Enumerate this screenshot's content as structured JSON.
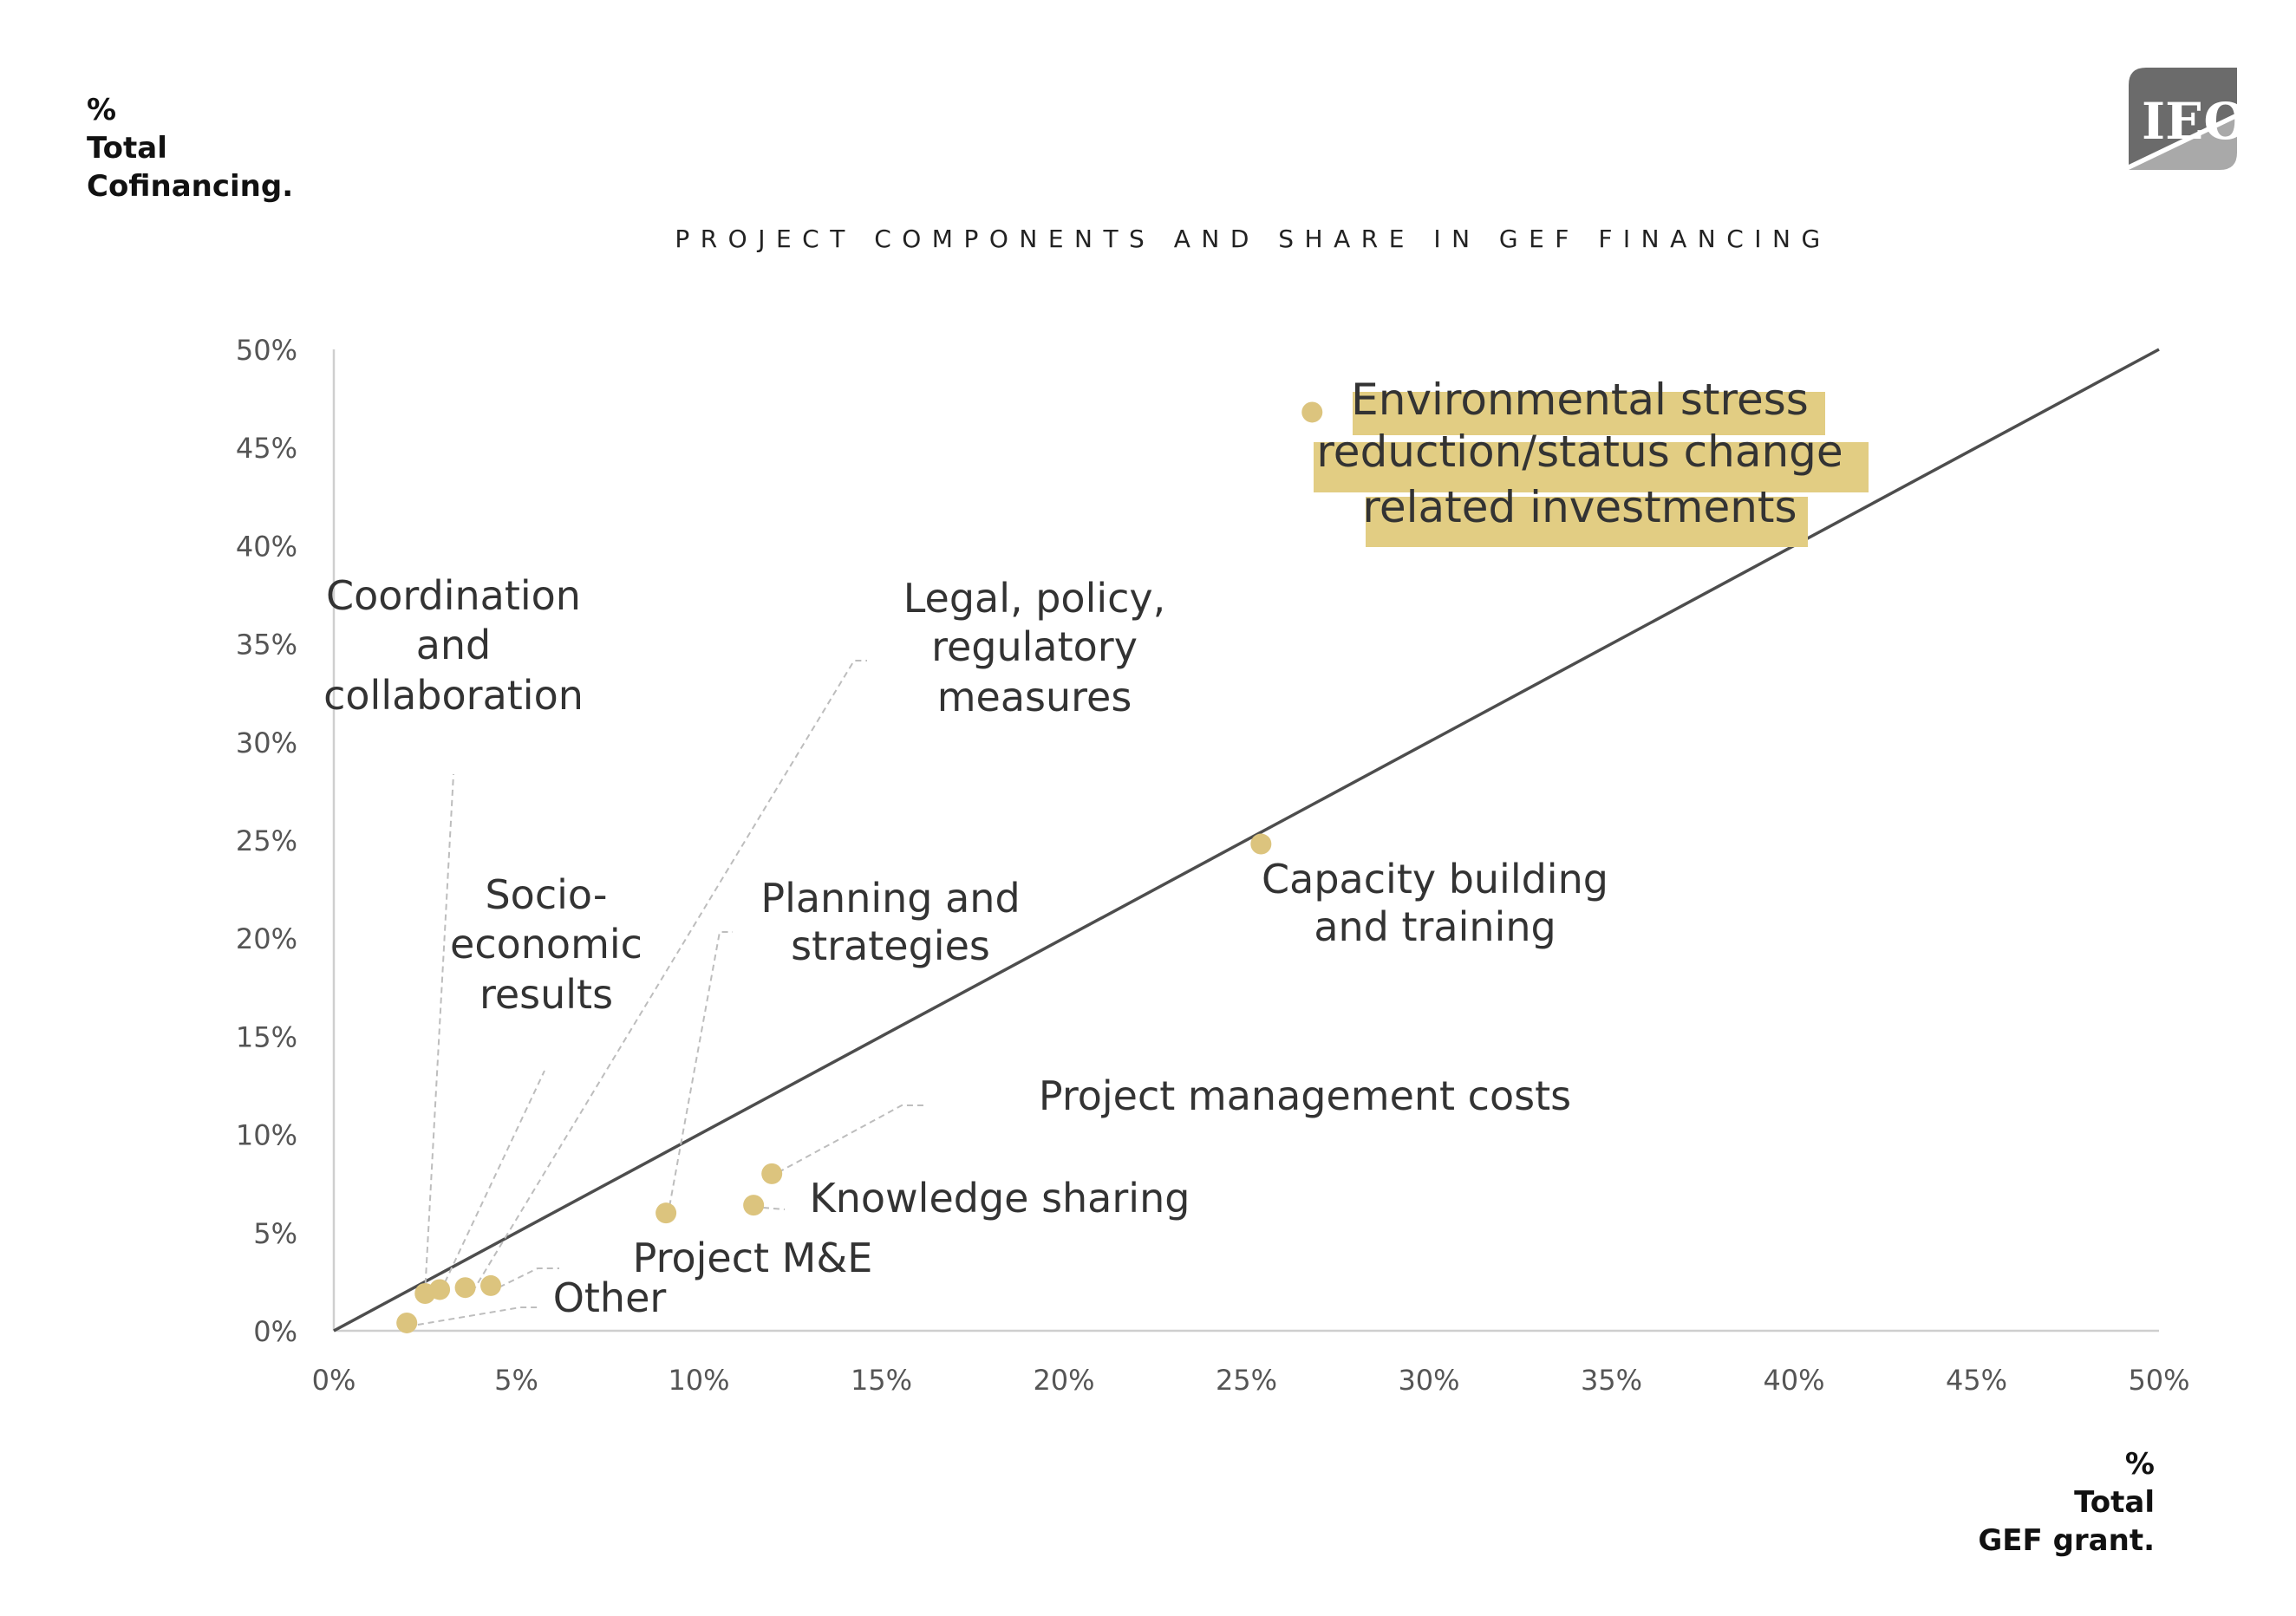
{
  "logo": {
    "text": "IEO",
    "icon": "ieo-logo"
  },
  "colors": {
    "point": "#dcc47e",
    "highlight": "#e2cd83",
    "reference_line": "#4d4d4d",
    "axis": "#cfcfcf",
    "text": "#333333",
    "logo_dark": "#6b6b6b",
    "logo_light": "#a9a9a9"
  },
  "chart_data": {
    "type": "scatter",
    "title": "PROJECT COMPONENTS AND SHARE IN GEF FINANCING",
    "ylabel_lines": [
      "%",
      "Total",
      "Cofinancing."
    ],
    "xlabel_lines": [
      "%",
      "Total",
      "GEF grant."
    ],
    "xlim": [
      0,
      50
    ],
    "ylim": [
      0,
      50
    ],
    "xticks": [
      "0%",
      "5%",
      "10%",
      "15%",
      "20%",
      "25%",
      "30%",
      "35%",
      "40%",
      "45%",
      "50%"
    ],
    "yticks": [
      "0%",
      "5%",
      "10%",
      "15%",
      "20%",
      "25%",
      "30%",
      "35%",
      "40%",
      "45%",
      "50%"
    ],
    "grid": false,
    "reference_line": "y = x",
    "points": [
      {
        "name": "Environmental stress reduction/status change related investments",
        "label_lines": [
          "Environmental stress",
          "reduction/status change",
          "related investments"
        ],
        "x": 26.8,
        "y": 46.8,
        "highlight": true
      },
      {
        "name": "Capacity building and training",
        "label_lines": [
          "Capacity building",
          "and training"
        ],
        "x": 25.4,
        "y": 24.8
      },
      {
        "name": "Project management costs",
        "label_lines": [
          "Project management costs"
        ],
        "x": 12.0,
        "y": 8.0
      },
      {
        "name": "Knowledge sharing",
        "label_lines": [
          "Knowledge sharing"
        ],
        "x": 11.5,
        "y": 6.4
      },
      {
        "name": "Planning and strategies",
        "label_lines": [
          "Planning and",
          "strategies"
        ],
        "x": 9.1,
        "y": 6.0
      },
      {
        "name": "Legal, policy, regulatory measures",
        "label_lines": [
          "Legal, policy,",
          "regulatory",
          "measures"
        ],
        "x": 3.6,
        "y": 2.2
      },
      {
        "name": "Project M&E",
        "label_lines": [
          "Project M&E"
        ],
        "x": 4.3,
        "y": 2.3
      },
      {
        "name": "Socio-economic results",
        "label_lines": [
          "Socio-",
          "economic",
          "results"
        ],
        "x": 2.9,
        "y": 2.1
      },
      {
        "name": "Coordination and collaboration",
        "label_lines": [
          "Coordination",
          "and",
          "collaboration"
        ],
        "x": 2.5,
        "y": 1.9
      },
      {
        "name": "Other",
        "label_lines": [
          "Other"
        ],
        "x": 2.0,
        "y": 0.4
      }
    ]
  }
}
